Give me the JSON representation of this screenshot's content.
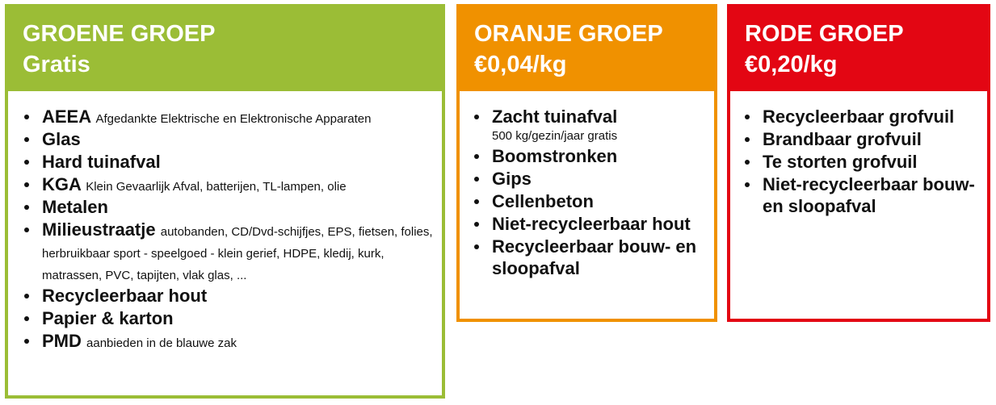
{
  "colors": {
    "green": "#9bbd36",
    "orange": "#f09100",
    "red": "#e30613"
  },
  "groups": [
    {
      "title": "GROENE GROEP",
      "price": "Gratis",
      "items": [
        {
          "label": "AEEA",
          "note": "Afgedankte Elektrische en Elektronische Apparaten"
        },
        {
          "label": "Glas",
          "note": ""
        },
        {
          "label": "Hard tuinafval",
          "note": ""
        },
        {
          "label": "KGA",
          "note": "Klein Gevaarlijk Afval, batterijen, TL-lampen, olie"
        },
        {
          "label": "Metalen",
          "note": ""
        },
        {
          "label": "Milieustraatje",
          "note": "autobanden, CD/Dvd-schijfjes, EPS, fietsen, folies, herbruikbaar sport - speelgoed - klein gerief, HDPE, kledij, kurk, matrassen, PVC, tapijten, vlak glas, ..."
        },
        {
          "label": "Recycleerbaar hout",
          "note": ""
        },
        {
          "label": "Papier & karton",
          "note": ""
        },
        {
          "label": "PMD",
          "note": "aanbieden in de blauwe zak"
        }
      ]
    },
    {
      "title": "ORANJE GROEP",
      "price": "€0,04/kg",
      "items": [
        {
          "label": "Zacht tuinafval",
          "note": "500 kg/gezin/jaar gratis"
        },
        {
          "label": "Boomstronken",
          "note": ""
        },
        {
          "label": "Gips",
          "note": ""
        },
        {
          "label": "Cellenbeton",
          "note": ""
        },
        {
          "label": "Niet-recycleerbaar hout",
          "note": ""
        },
        {
          "label": "Recycleerbaar bouw- en sloopafval",
          "note": ""
        }
      ]
    },
    {
      "title": "RODE GROEP",
      "price": "€0,20/kg",
      "items": [
        {
          "label": "Recycleerbaar grofvuil",
          "note": ""
        },
        {
          "label": "Brandbaar grofvuil",
          "note": ""
        },
        {
          "label": "Te storten grofvuil",
          "note": ""
        },
        {
          "label": "Niet-recycleerbaar bouw- en sloopafval",
          "note": ""
        }
      ]
    }
  ]
}
